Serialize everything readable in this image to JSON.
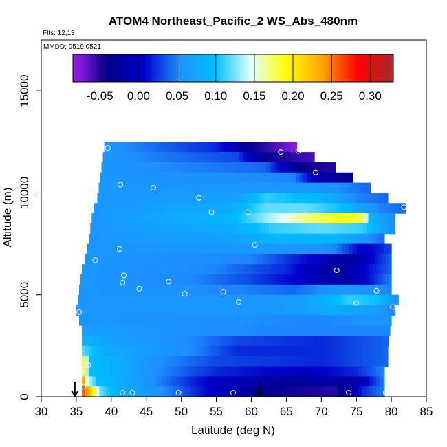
{
  "chart_data": {
    "type": "heatmap",
    "title": "ATOM4 Northeast_Pacific_2 WS_Abs_480nm",
    "flights_label": "Flts: 12,13",
    "date_label": "MMDD: 0519,0521",
    "xlabel": "Latitude (deg N)",
    "ylabel": "Altitude (m)",
    "xlim": [
      30,
      85
    ],
    "ylim": [
      0,
      17500
    ],
    "x_ticks": [
      "30",
      "35",
      "40",
      "45",
      "50",
      "55",
      "60",
      "65",
      "70",
      "75",
      "80",
      "85"
    ],
    "y_ticks": [
      "0",
      "5000",
      "10000",
      "15000"
    ],
    "colorbar": {
      "range": [
        -0.085,
        0.33
      ],
      "tick_labels": [
        "-0.05",
        "0.00",
        "0.05",
        "0.10",
        "0.15",
        "0.20",
        "0.25",
        "0.30"
      ],
      "tick_values": [
        -0.05,
        0.0,
        0.05,
        0.1,
        0.15,
        0.2,
        0.25,
        0.3
      ],
      "colors": [
        "#a020f0",
        "#00008b",
        "#0000cd",
        "#1e90ff",
        "#00bfff",
        "#e0ffff",
        "#ffff00",
        "#ffa500",
        "#ff0000",
        "#a52a2a"
      ]
    },
    "profile_bands": [
      {
        "alt": [
          12000,
          12500
        ],
        "lat": [
          39.0,
          66.5
        ],
        "ramp": [
          [
            39,
            0.06
          ],
          [
            55,
            0.02
          ],
          [
            60,
            -0.04
          ],
          [
            66.5,
            -0.08
          ]
        ]
      },
      {
        "alt": [
          11500,
          12000
        ],
        "lat": [
          38.8,
          69.0
        ],
        "ramp": [
          [
            38.8,
            0.06
          ],
          [
            58,
            0.03
          ],
          [
            62,
            -0.04
          ],
          [
            69,
            -0.06
          ]
        ]
      },
      {
        "alt": [
          11000,
          11500
        ],
        "lat": [
          38.6,
          72.0
        ],
        "ramp": [
          [
            38.6,
            0.06
          ],
          [
            62,
            0.04
          ],
          [
            67,
            -0.04
          ],
          [
            72,
            -0.05
          ]
        ]
      },
      {
        "alt": [
          10500,
          11000
        ],
        "lat": [
          38.4,
          74.5
        ],
        "ramp": [
          [
            38.4,
            0.06
          ],
          [
            66,
            0.05
          ],
          [
            70,
            -0.02
          ],
          [
            74.5,
            -0.03
          ]
        ]
      },
      {
        "alt": [
          10000,
          10500
        ],
        "lat": [
          38.2,
          77.0
        ],
        "ramp": [
          [
            38.2,
            0.06
          ],
          [
            70,
            0.06
          ],
          [
            77,
            0.04
          ]
        ]
      },
      {
        "alt": [
          9500,
          10000
        ],
        "lat": [
          38.0,
          79.5
        ],
        "ramp": [
          [
            38.0,
            0.06
          ],
          [
            58,
            0.07
          ],
          [
            62,
            0.11
          ],
          [
            70,
            0.09
          ],
          [
            75,
            0.05
          ],
          [
            79.5,
            0.04
          ]
        ]
      },
      {
        "alt": [
          9000,
          9500
        ],
        "lat": [
          37.5,
          82.0
        ],
        "ramp": [
          [
            37.5,
            0.06
          ],
          [
            57,
            0.08
          ],
          [
            62,
            0.12
          ],
          [
            68,
            0.12
          ],
          [
            73,
            0.1
          ],
          [
            78,
            0.05
          ],
          [
            82,
            0.04
          ]
        ]
      },
      {
        "alt": [
          8500,
          9000
        ],
        "lat": [
          37.2,
          80.5
        ],
        "ramp": [
          [
            37.2,
            0.06
          ],
          [
            57,
            0.09
          ],
          [
            62,
            0.13
          ],
          [
            68,
            0.17
          ],
          [
            73,
            0.19
          ],
          [
            76,
            0.18
          ],
          [
            77,
            0.09
          ],
          [
            80.5,
            0.05
          ]
        ]
      },
      {
        "alt": [
          8000,
          8500
        ],
        "lat": [
          37.0,
          80.5
        ],
        "ramp": [
          [
            37.0,
            0.06
          ],
          [
            57,
            0.08
          ],
          [
            63,
            0.11
          ],
          [
            70,
            0.12
          ],
          [
            76,
            0.11
          ],
          [
            80.5,
            0.05
          ]
        ]
      },
      {
        "alt": [
          7500,
          8000
        ],
        "lat": [
          36.8,
          79.0
        ],
        "ramp": [
          [
            36.8,
            0.06
          ],
          [
            58,
            0.07
          ],
          [
            64,
            0.09
          ],
          [
            72,
            0.09
          ],
          [
            76,
            0.06
          ],
          [
            79,
            0.04
          ]
        ]
      },
      {
        "alt": [
          7000,
          7500
        ],
        "lat": [
          36.5,
          80.0
        ],
        "ramp": [
          [
            36.5,
            0.06
          ],
          [
            65,
            0.06
          ],
          [
            72,
            0.05
          ],
          [
            76,
            0.0
          ],
          [
            80,
            0.03
          ]
        ]
      },
      {
        "alt": [
          6500,
          7000
        ],
        "lat": [
          36.2,
          80.0
        ],
        "ramp": [
          [
            36.2,
            0.06
          ],
          [
            60,
            0.05
          ],
          [
            70,
            0.0
          ],
          [
            74,
            -0.03
          ],
          [
            80,
            0.04
          ]
        ]
      },
      {
        "alt": [
          6000,
          6500
        ],
        "lat": [
          35.8,
          80.0
        ],
        "ramp": [
          [
            35.8,
            0.06
          ],
          [
            55,
            0.05
          ],
          [
            65,
            0.02
          ],
          [
            72,
            -0.03
          ],
          [
            80,
            0.04
          ]
        ]
      },
      {
        "alt": [
          5500,
          6000
        ],
        "lat": [
          35.6,
          80.0
        ],
        "ramp": [
          [
            35.6,
            0.06
          ],
          [
            52,
            0.05
          ],
          [
            60,
            0.03
          ],
          [
            68,
            0.0
          ],
          [
            74,
            -0.02
          ],
          [
            80,
            0.05
          ]
        ]
      },
      {
        "alt": [
          5000,
          5500
        ],
        "lat": [
          35.4,
          80.0
        ],
        "ramp": [
          [
            35.4,
            0.06
          ],
          [
            58,
            0.05
          ],
          [
            66,
            0.04
          ],
          [
            72,
            0.06
          ],
          [
            80,
            0.05
          ]
        ]
      },
      {
        "alt": [
          4500,
          5000
        ],
        "lat": [
          35.2,
          81.0
        ],
        "ramp": [
          [
            35.2,
            0.06
          ],
          [
            62,
            0.06
          ],
          [
            68,
            0.07
          ],
          [
            74,
            0.11
          ],
          [
            78,
            0.1
          ],
          [
            81,
            0.05
          ]
        ]
      },
      {
        "alt": [
          4000,
          4500
        ],
        "lat": [
          35.0,
          80.5
        ],
        "ramp": [
          [
            35.0,
            0.06
          ],
          [
            64,
            0.06
          ],
          [
            72,
            0.08
          ],
          [
            77,
            0.07
          ],
          [
            80.5,
            0.05
          ]
        ]
      },
      {
        "alt": [
          3500,
          4000
        ],
        "lat": [
          35.4,
          80.0
        ],
        "ramp": [
          [
            35.4,
            0.06
          ],
          [
            70,
            0.05
          ],
          [
            80,
            0.06
          ]
        ]
      },
      {
        "alt": [
          3000,
          3500
        ],
        "lat": [
          35.8,
          79.8
        ],
        "ramp": [
          [
            35.8,
            0.07
          ],
          [
            45,
            0.06
          ],
          [
            62,
            0.05
          ],
          [
            80,
            0.05
          ]
        ]
      },
      {
        "alt": [
          2500,
          3000
        ],
        "lat": [
          35.8,
          79.6
        ],
        "ramp": [
          [
            35.8,
            0.09
          ],
          [
            40,
            0.07
          ],
          [
            52,
            0.05
          ],
          [
            58,
            0.03
          ],
          [
            70,
            0.02
          ],
          [
            79.6,
            0.04
          ]
        ]
      },
      {
        "alt": [
          2000,
          2500
        ],
        "lat": [
          35.8,
          79.5
        ],
        "ramp": [
          [
            35.8,
            0.12
          ],
          [
            39,
            0.08
          ],
          [
            52,
            0.05
          ],
          [
            58,
            0.02
          ],
          [
            70,
            0.02
          ],
          [
            79.5,
            0.04
          ]
        ]
      },
      {
        "alt": [
          1500,
          2000
        ],
        "lat": [
          35.8,
          79.5
        ],
        "ramp": [
          [
            35.8,
            0.2
          ],
          [
            37,
            0.1
          ],
          [
            45,
            0.06
          ],
          [
            55,
            0.03
          ],
          [
            70,
            0.02
          ],
          [
            79.5,
            0.04
          ]
        ]
      },
      {
        "alt": [
          1000,
          1500
        ],
        "lat": [
          35.8,
          79.0
        ],
        "ramp": [
          [
            35.8,
            0.19
          ],
          [
            37,
            0.1
          ],
          [
            45,
            0.06
          ],
          [
            55,
            0.02
          ],
          [
            68,
            0.0
          ],
          [
            75,
            0.02
          ],
          [
            79,
            0.05
          ]
        ]
      },
      {
        "alt": [
          500,
          1000
        ],
        "lat": [
          35.8,
          79.0
        ],
        "ramp": [
          [
            35.8,
            0.28
          ],
          [
            36.5,
            0.15
          ],
          [
            38,
            0.1
          ],
          [
            45,
            0.06
          ],
          [
            55,
            0.0
          ],
          [
            65,
            -0.03
          ],
          [
            75,
            -0.02
          ],
          [
            79,
            0.05
          ]
        ]
      },
      {
        "alt": [
          0,
          500
        ],
        "lat": [
          35.8,
          79.0
        ],
        "ramp": [
          [
            35.8,
            0.27
          ],
          [
            37,
            0.22
          ],
          [
            38.5,
            0.12
          ],
          [
            41,
            0.08
          ],
          [
            48,
            0.05
          ],
          [
            55,
            0.0
          ],
          [
            62,
            -0.04
          ],
          [
            72,
            -0.05
          ],
          [
            76,
            0.02
          ],
          [
            79,
            0.05
          ]
        ]
      }
    ],
    "sample_points": [
      {
        "x": 39.5,
        "y": 12200
      },
      {
        "x": 64.2,
        "y": 12000
      },
      {
        "x": 66.7,
        "y": 12050
      },
      {
        "x": 69.2,
        "y": 11000
      },
      {
        "x": 41.3,
        "y": 10400
      },
      {
        "x": 46.0,
        "y": 10250
      },
      {
        "x": 52.5,
        "y": 9750
      },
      {
        "x": 54.3,
        "y": 9050
      },
      {
        "x": 59.5,
        "y": 9050
      },
      {
        "x": 81.8,
        "y": 9300
      },
      {
        "x": 76.2,
        "y": 8850
      },
      {
        "x": 60.5,
        "y": 7450
      },
      {
        "x": 41.2,
        "y": 7250
      },
      {
        "x": 37.7,
        "y": 6700
      },
      {
        "x": 72.2,
        "y": 6200
      },
      {
        "x": 41.8,
        "y": 5950
      },
      {
        "x": 41.6,
        "y": 5600
      },
      {
        "x": 48.2,
        "y": 5650
      },
      {
        "x": 44.0,
        "y": 5300
      },
      {
        "x": 50.5,
        "y": 5050
      },
      {
        "x": 56.0,
        "y": 5150
      },
      {
        "x": 58.2,
        "y": 4650
      },
      {
        "x": 77.9,
        "y": 5200
      },
      {
        "x": 75.0,
        "y": 4600
      },
      {
        "x": 80.2,
        "y": 4400
      },
      {
        "x": 35.4,
        "y": 4150
      },
      {
        "x": 36.7,
        "y": 1550
      },
      {
        "x": 36.0,
        "y": 500
      },
      {
        "x": 41.6,
        "y": 200
      },
      {
        "x": 43.0,
        "y": 200
      },
      {
        "x": 49.6,
        "y": 200
      },
      {
        "x": 57.4,
        "y": 200
      },
      {
        "x": 73.9,
        "y": 200
      },
      {
        "x": 79.2,
        "y": 200
      }
    ],
    "arrows_at_lat": [
      34.8,
      61.2
    ]
  }
}
